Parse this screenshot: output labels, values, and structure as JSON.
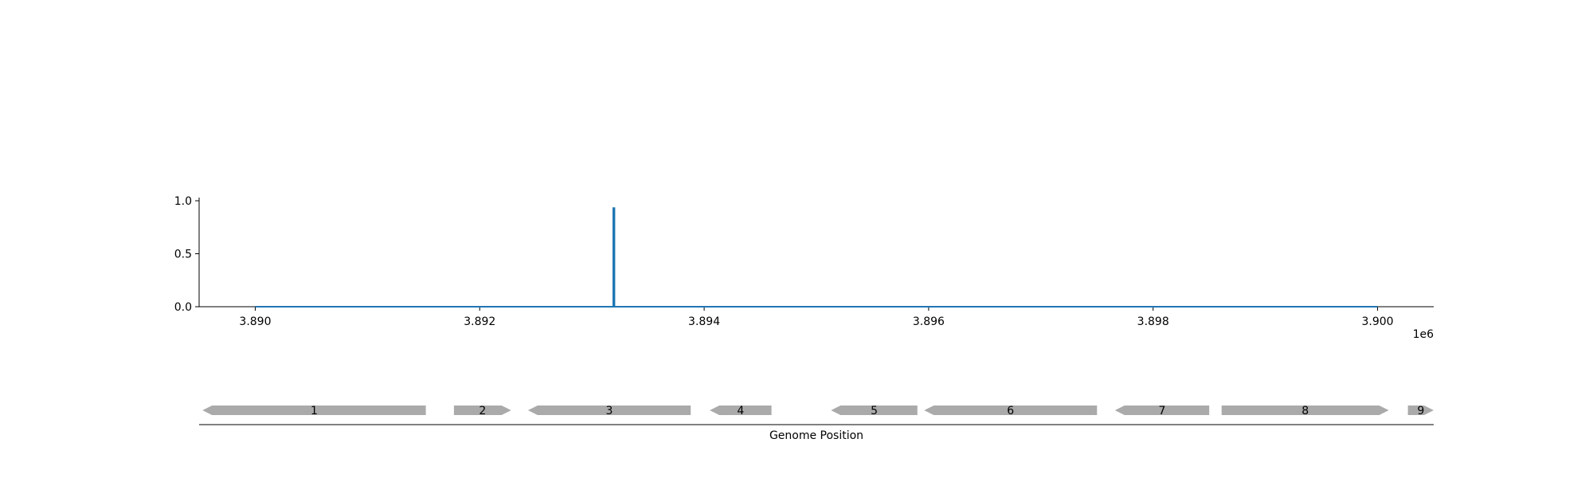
{
  "chart_data": {
    "type": "line",
    "title": "",
    "xlabel": "",
    "ylabel": "",
    "x_offset_label": "1e6",
    "xlim": [
      3889500,
      3900500
    ],
    "ylim": [
      0,
      1.03
    ],
    "x_ticks": [
      3890000,
      3892000,
      3894000,
      3896000,
      3898000,
      3900000
    ],
    "x_tick_labels": [
      "3.890",
      "3.892",
      "3.894",
      "3.896",
      "3.898",
      "3.900"
    ],
    "y_ticks": [
      0,
      0.5,
      1.0
    ],
    "y_tick_labels": [
      "0.0",
      "0.5",
      "1.0"
    ],
    "grid": false,
    "series": [
      {
        "color": "#1f77b4",
        "x": [
          3890000,
          3893190,
          3893190,
          3893200,
          3893200,
          3900000
        ],
        "y": [
          0,
          0,
          0.93,
          0.93,
          0,
          0
        ]
      }
    ]
  },
  "gene_track": {
    "xlabel": "Genome Position",
    "color": "#aaaaaa",
    "genes": [
      {
        "label": "1",
        "start": 3889530,
        "end": 3891520,
        "strand": "-"
      },
      {
        "label": "2",
        "start": 3891770,
        "end": 3892280,
        "strand": "+"
      },
      {
        "label": "3",
        "start": 3892430,
        "end": 3893880,
        "strand": "-"
      },
      {
        "label": "4",
        "start": 3894050,
        "end": 3894600,
        "strand": "-"
      },
      {
        "label": "5",
        "start": 3895130,
        "end": 3895900,
        "strand": "-"
      },
      {
        "label": "6",
        "start": 3895960,
        "end": 3897500,
        "strand": "-"
      },
      {
        "label": "7",
        "start": 3897660,
        "end": 3898500,
        "strand": "-"
      },
      {
        "label": "8",
        "start": 3898610,
        "end": 3900100,
        "strand": "+"
      },
      {
        "label": "9",
        "start": 3900270,
        "end": 3900500,
        "strand": "+"
      }
    ]
  }
}
